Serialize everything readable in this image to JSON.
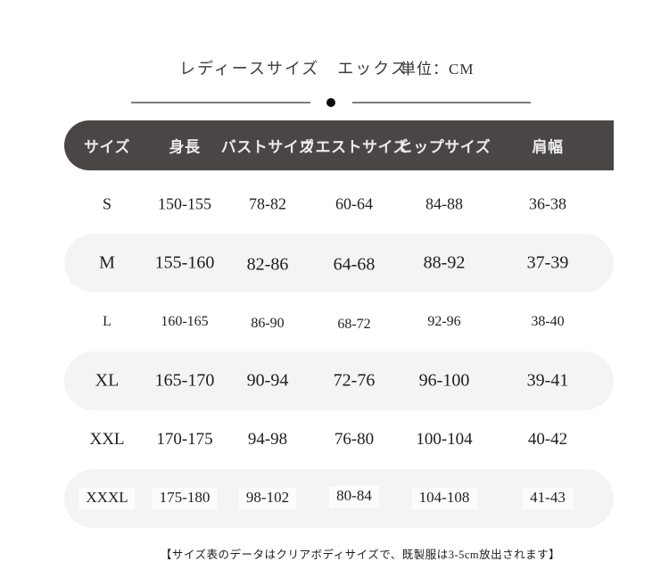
{
  "title": {
    "main": "レディースサイズ　エックス",
    "unit": "単位：CM"
  },
  "table": {
    "headers": [
      "サイズ",
      "身長",
      "バストサイズ",
      "ウエストサイズ",
      "ヒップサイズ",
      "肩幅"
    ],
    "rows": [
      [
        "S",
        "150-155",
        "78-82",
        "60-64",
        "84-88",
        "36-38"
      ],
      [
        "M",
        "155-160",
        "82-86",
        "64-68",
        "88-92",
        "37-39"
      ],
      [
        "L",
        "160-165",
        "86-90",
        "68-72",
        "92-96",
        "38-40"
      ],
      [
        "XL",
        "165-170",
        "90-94",
        "72-76",
        "96-100",
        "39-41"
      ],
      [
        "XXL",
        "170-175",
        "94-98",
        "76-80",
        "100-104",
        "40-42"
      ],
      [
        "XXXL",
        "175-180",
        "98-102",
        "80-84",
        "104-108",
        "41-43"
      ]
    ]
  },
  "footer": {
    "note": "【サイズ表のデータはクリアボディサイズで、既製服は3-5cm放出されます】"
  },
  "colors": {
    "header_bar": "#4a4646",
    "header_text": "#eceaea",
    "alt_row": "#f5f4f4",
    "body_text": "#1f1f1f",
    "divider_dot": "#0d0d0d"
  }
}
